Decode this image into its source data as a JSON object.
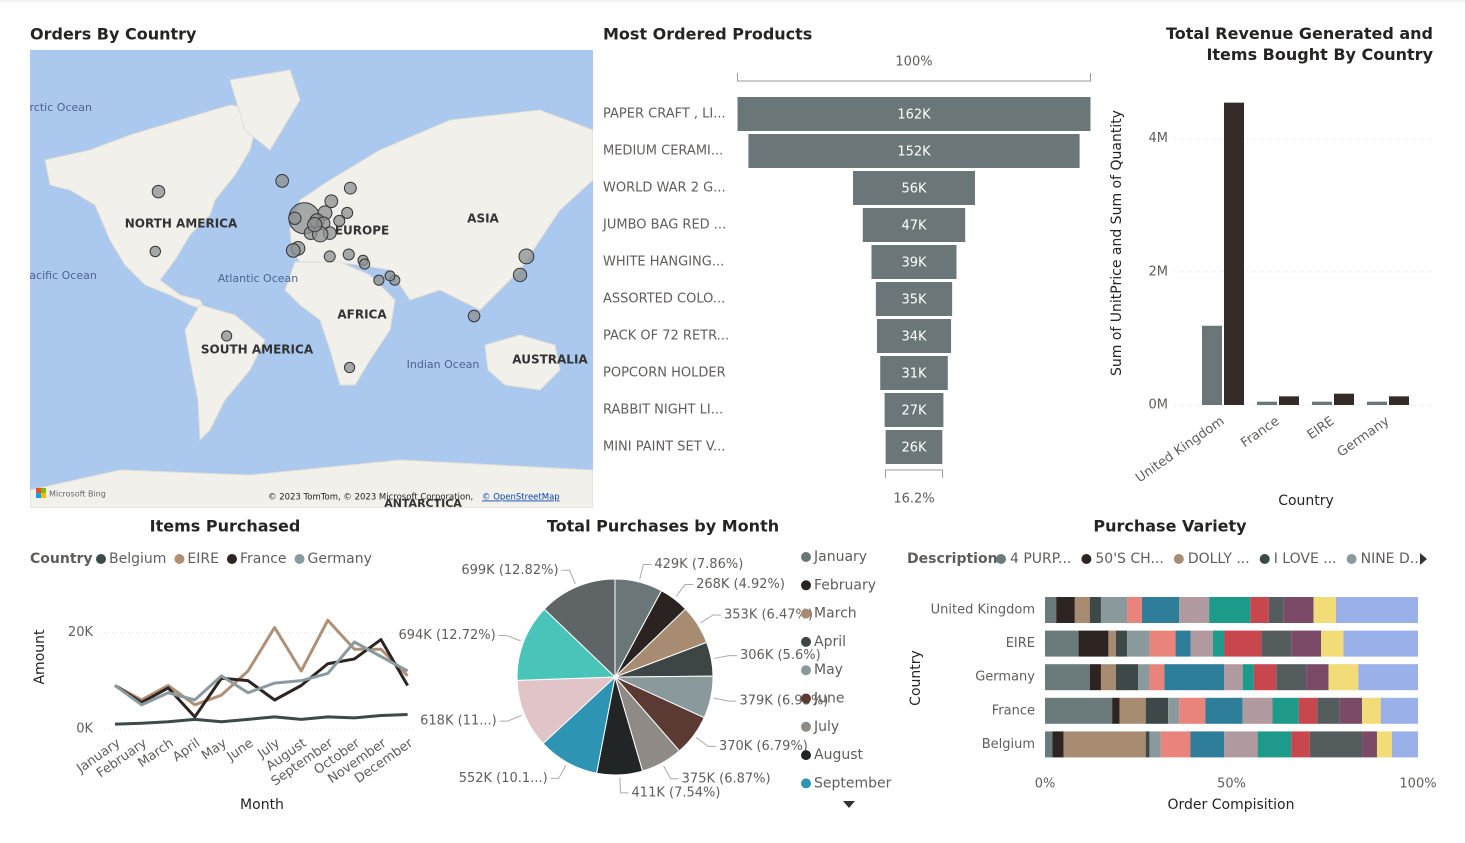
{
  "chart_data": [
    {
      "type": "map",
      "title": "Orders By Country",
      "projection": "mercator",
      "labels": [
        "NORTH AMERICA",
        "EUROPE",
        "ASIA",
        "AFRICA",
        "SOUTH AMERICA",
        "AUSTRALIA",
        "Arctic Ocean",
        "Pacific Ocean",
        "Atlantic Ocean",
        "Indian Ocean"
      ],
      "brand": "Microsoft Bing",
      "copyright": "© 2023 TomTom, © 2023 Microsoft Corporation,",
      "link": "© OpenStreetMap",
      "bottom_label": "ANTARCTICA",
      "xlim": [
        -175,
        180
      ],
      "ylim": [
        -76,
        84
      ],
      "color": "#8c9090",
      "x": [
        -2,
        -94,
        -96,
        -16,
        27,
        15,
        11,
        6,
        10,
        2,
        -6,
        -9,
        14,
        26,
        35,
        36,
        45,
        55,
        52,
        105,
        138,
        134,
        -51,
        26.5,
        25,
        20,
        14,
        8,
        4.5,
        -8
      ],
      "y": [
        53,
        62,
        38.5,
        65,
        63,
        59,
        55,
        52,
        51,
        47,
        40,
        39,
        36,
        37,
        34,
        32,
        23,
        23,
        25.5,
        1,
        36,
        26,
        -11.5,
        -30,
        55,
        52,
        47,
        46.5,
        50.5,
        53
      ],
      "sizes": [
        356000,
        9000,
        1500,
        10000,
        6000,
        10000,
        18000,
        20000,
        12000,
        11000,
        16000,
        16000,
        3000,
        3000,
        1000,
        1000,
        1000,
        1000,
        500,
        5000,
        25000,
        13800,
        1000,
        1000,
        3000,
        3000,
        10000,
        30000,
        20000,
        8000
      ]
    },
    {
      "type": "funnel",
      "title": "Most Ordered Products",
      "categories": [
        "PAPER CRAFT , LI...",
        "MEDIUM CERAMI...",
        "WORLD WAR 2 G...",
        "JUMBO BAG RED ...",
        "WHITE HANGING...",
        "ASSORTED COLO...",
        "PACK OF 72 RETR...",
        "POPCORN HOLDER",
        "RABBIT NIGHT LI...",
        "MINI PAINT SET V..."
      ],
      "values": [
        162000,
        152000,
        56000,
        47000,
        39000,
        35000,
        34000,
        31000,
        27000,
        26000
      ],
      "value_labels": [
        "162K",
        "152K",
        "56K",
        "47K",
        "39K",
        "35K",
        "34K",
        "31K",
        "27K",
        "26K"
      ],
      "top_percent": {
        "value": 100,
        "label": "100%"
      },
      "bottom_percent": {
        "value": 16.2,
        "label": "16.2%"
      },
      "color": "#6b7679"
    },
    {
      "type": "bar",
      "title": "Total Revenue Generated and Items Bought By Country",
      "x_label": "Country",
      "y_label": "Sum of UnitPrice and Sum of Quantity",
      "categories": [
        "United Kingdom",
        "France",
        "EIRE",
        "Germany"
      ],
      "series": [
        {
          "color": "#6b7679",
          "values": [
            1190000,
            50000,
            50000,
            50000
          ]
        },
        {
          "color": "#342a27",
          "values": [
            4540000,
            130000,
            170000,
            130000
          ]
        }
      ],
      "ylim": [
        0,
        4700000
      ],
      "yticks": [
        {
          "value": 0,
          "label": "0M"
        },
        {
          "value": 2000000,
          "label": "2M"
        },
        {
          "value": 4000000,
          "label": "4M"
        }
      ],
      "grid": true
    },
    {
      "type": "line",
      "title": "Items Purchased",
      "x_label": "Month",
      "y_label": "Amount",
      "legend_title": "Country",
      "categories": [
        "January",
        "February",
        "March",
        "April",
        "May",
        "June",
        "July",
        "August",
        "September",
        "October",
        "November",
        "December"
      ],
      "series": [
        {
          "name": "Belgium",
          "color": "#3d4a4a",
          "values": [
            1000,
            1200,
            1500,
            2000,
            1500,
            2000,
            2500,
            2000,
            2500,
            2300,
            2800,
            3000
          ]
        },
        {
          "name": "EIRE",
          "color": "#b09077",
          "values": [
            9000,
            6000,
            9000,
            5000,
            7000,
            12000,
            21000,
            12000,
            22500,
            16500,
            16500,
            11000
          ]
        },
        {
          "name": "France",
          "color": "#2e2522",
          "values": [
            9000,
            5500,
            8500,
            2500,
            10500,
            10000,
            6000,
            9000,
            13500,
            14500,
            18500,
            9000
          ]
        },
        {
          "name": "Germany",
          "color": "#8a9ba0",
          "values": [
            9000,
            5000,
            7500,
            6000,
            11000,
            7500,
            9500,
            10000,
            11500,
            18000,
            15000,
            12000
          ]
        }
      ],
      "ylim": [
        0,
        24000
      ],
      "yticks": [
        {
          "value": 0,
          "label": "0K"
        },
        {
          "value": 20000,
          "label": "20K"
        }
      ],
      "grid": true
    },
    {
      "type": "pie",
      "title": "Total Purchases by Month",
      "categories": [
        "January",
        "February",
        "March",
        "April",
        "May",
        "June",
        "July",
        "August",
        "September",
        null,
        null,
        null
      ],
      "values": [
        429000,
        268000,
        353000,
        306000,
        379000,
        370000,
        375000,
        411000,
        552000,
        618000,
        694000,
        699000
      ],
      "value_labels": [
        "429K (7.86%)",
        "268K (4.92%)",
        "353K (6.47%)",
        "306K (5.6%)",
        "379K (6.95%)",
        "370K (6.79%)",
        "375K (6.87%)",
        "411K (7.54%)",
        "552K (10.1...)",
        "618K (11...)",
        "694K (12.72%)",
        "699K (12.82%)"
      ],
      "colors": [
        "#6b7679",
        "#2b2321",
        "#a88c72",
        "#3d4545",
        "#8a9a9c",
        "#5a3a33",
        "#8f8a86",
        "#222526",
        "#2e94b4",
        "#e0c4c8",
        "#48c4b8",
        "#5f6566"
      ]
    },
    {
      "type": "stacked-bar-100",
      "title": "Purchase Variety",
      "x_label": "Order Compisition",
      "y_label": "Country",
      "legend_title": "Description",
      "categories": [
        "United Kingdom",
        "EIRE",
        "Germany",
        "France",
        "Belgium"
      ],
      "series": [
        {
          "name": "4 PURP...",
          "color": "#6b7b7b",
          "values": [
            3,
            9,
            12,
            18,
            2
          ]
        },
        {
          "name": "50'S CH...",
          "color": "#2e2422",
          "values": [
            5,
            8,
            3,
            2,
            3
          ]
        },
        {
          "name": "DOLLY ...",
          "color": "#a88c72",
          "values": [
            4,
            2,
            4,
            7,
            22
          ]
        },
        {
          "name": "I LOVE ...",
          "color": "#3d4848",
          "values": [
            3,
            3,
            6,
            6,
            1
          ]
        },
        {
          "name": "NINE D...",
          "color": "#8a9a9c",
          "values": [
            7,
            6,
            3,
            3,
            3
          ]
        },
        {
          "color": "#e8847c",
          "values": [
            4,
            7,
            4,
            7,
            8
          ]
        },
        {
          "color": "#2e7e9a",
          "values": [
            10,
            4,
            16,
            10,
            9
          ]
        },
        {
          "color": "#b09aa0",
          "values": [
            8,
            6,
            5,
            8,
            9
          ]
        },
        {
          "color": "#1e9a8a",
          "values": [
            11,
            3,
            3,
            7,
            9
          ]
        },
        {
          "color": "#c8464e",
          "values": [
            5,
            10,
            6,
            5,
            5
          ]
        },
        {
          "color": "#555c5e",
          "values": [
            4,
            8,
            8,
            6,
            14
          ]
        },
        {
          "color": "#7a4a66",
          "values": [
            8,
            8,
            6,
            6,
            4
          ]
        },
        {
          "color": "#f2dc78",
          "values": [
            6,
            6,
            8,
            5,
            4
          ]
        },
        {
          "color": "#9ab0e8",
          "values": [
            22,
            20,
            16,
            10,
            7
          ]
        }
      ],
      "xlim": [
        0,
        100
      ],
      "xticks": [
        {
          "value": 0,
          "label": "0%"
        },
        {
          "value": 50,
          "label": "50%"
        },
        {
          "value": 100,
          "label": "100%"
        }
      ]
    }
  ]
}
